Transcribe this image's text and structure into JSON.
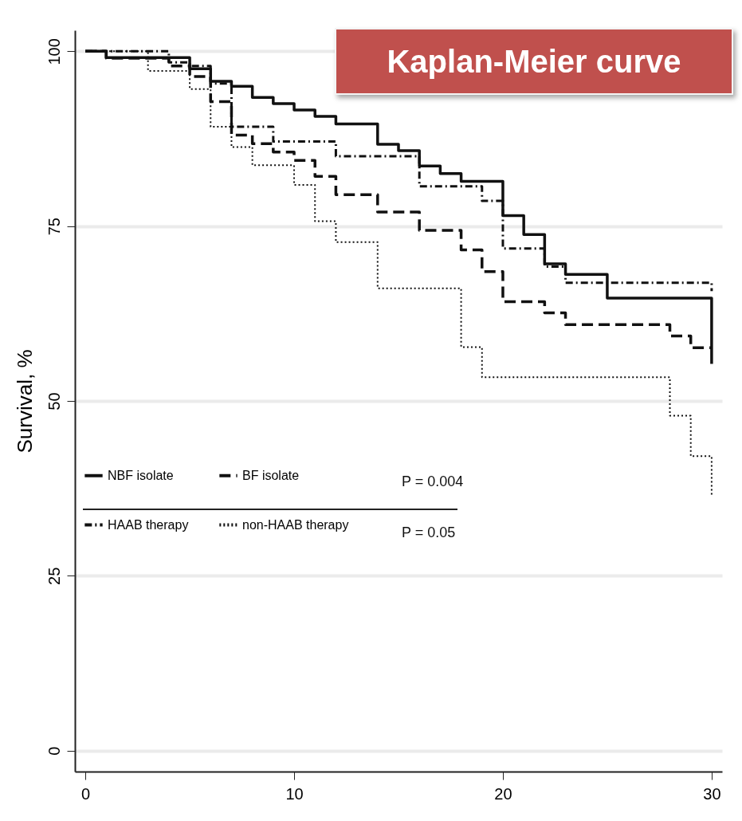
{
  "chart_data": {
    "type": "step",
    "title": "Kaplan-Meier curve",
    "ylabel": "Survival, %",
    "xlim": [
      -0.5,
      30.5
    ],
    "xticks": [
      0,
      10,
      20,
      30
    ],
    "ylim": [
      -3,
      103
    ],
    "yticks": [
      0,
      25,
      50,
      75,
      100
    ],
    "grid": "y",
    "legend": "left",
    "annotations": [
      "P = 0.004",
      "P = 0.05"
    ],
    "series": [
      {
        "name": "NBF isolate",
        "color": "#111111",
        "line_style": "solid",
        "x": [
          0,
          1,
          5,
          6,
          7,
          8,
          9,
          10,
          11,
          12,
          14,
          15,
          16,
          17,
          18,
          20,
          21,
          22,
          23,
          25,
          30
        ],
        "values": [
          100,
          99.1,
          97.5,
          95.7,
          95.0,
          93.4,
          92.5,
          91.6,
          90.7,
          89.6,
          86.7,
          85.8,
          83.6,
          82.5,
          81.4,
          76.5,
          73.8,
          69.6,
          68.1,
          64.7,
          55.3
        ]
      },
      {
        "name": "BF isolate",
        "color": "#111111",
        "line_style": "dashed",
        "x": [
          0,
          1,
          4,
          5,
          6,
          7,
          8,
          9,
          10,
          11,
          12,
          14,
          16,
          18,
          19,
          20,
          22,
          23,
          28,
          29,
          30
        ],
        "values": [
          100,
          99,
          97.9,
          96.4,
          92.8,
          88.0,
          86.8,
          85.6,
          84.4,
          82.1,
          79.5,
          77.0,
          74.4,
          71.6,
          68.5,
          64.2,
          62.6,
          60.9,
          59.3,
          57.6,
          57.6
        ]
      },
      {
        "name": "HAAB therapy",
        "color": "#111111",
        "line_style": "dashdot",
        "x": [
          0,
          4,
          5,
          6,
          7,
          9,
          12,
          16,
          19,
          20,
          22,
          23,
          30
        ],
        "values": [
          100,
          98.4,
          97.9,
          95.4,
          89.2,
          87.1,
          85.0,
          80.7,
          78.6,
          71.8,
          69.2,
          66.9,
          65.7
        ]
      },
      {
        "name": "non-HAAB therapy",
        "color": "#111111",
        "line_style": "dotted",
        "x": [
          0,
          3,
          5,
          6,
          7,
          8,
          10,
          11,
          12,
          14,
          18,
          19,
          28,
          29,
          30
        ],
        "values": [
          100,
          97.2,
          94.6,
          89.2,
          86.3,
          83.7,
          80.9,
          75.7,
          72.7,
          66.1,
          57.7,
          53.4,
          47.9,
          42.1,
          36.3
        ]
      }
    ]
  }
}
